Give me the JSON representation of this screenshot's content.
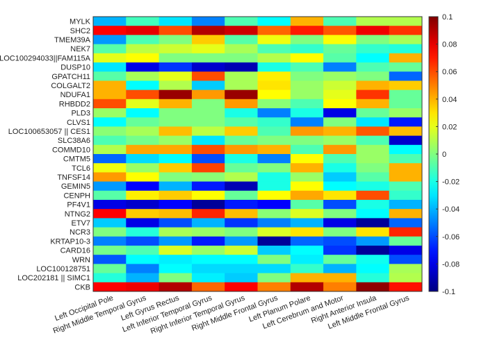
{
  "chart_data": {
    "type": "heatmap",
    "title": "",
    "rows": [
      "MYLK",
      "SHC2",
      "TMEM39A",
      "NEK7",
      "LOC100294033||FAM115A",
      "DUSP10",
      "GPATCH11",
      "COLGALT2",
      "NDUFA1",
      "RHBDD2",
      "PLD3",
      "CLVS1",
      "LOC100653057 || CES1",
      "SLC38A6",
      "COMMD10",
      "CMTM5",
      "TCL6",
      "TNFSF14",
      "GEMIN5",
      "CENPH",
      "PF4V1",
      "NTNG2",
      "ETV7",
      "NCR3",
      "KRTAP10-3",
      "CARD16",
      "WRN",
      "LOC100128751",
      "LOC202181 || SIMC1",
      "CKB"
    ],
    "columns": [
      "Left Occipital Pole",
      "Right Middle Temporal Gyrus",
      "Left Gyrus Rectus",
      "Left Inferior Temporal Gyrus",
      "Right Inferior Temporal Gyrus",
      "Right Middle Frontal Gyrus",
      "Left Planum Polare",
      "Left Cerebrum and Motor",
      "Right Anterior Insula",
      "Left Middle Frontal Gyrus"
    ],
    "values": [
      [
        -0.04,
        -0.012,
        -0.03,
        -0.05,
        -0.01,
        -0.025,
        0.04,
        -0.01,
        0.01,
        0.01
      ],
      [
        0.075,
        0.08,
        0.06,
        0.09,
        0.085,
        0.055,
        0.07,
        0.058,
        0.078,
        0.065
      ],
      [
        -0.045,
        -0.01,
        0.0,
        0.035,
        -0.008,
        0.022,
        0.0,
        0.024,
        0.0,
        0.008
      ],
      [
        -0.008,
        0.012,
        0.015,
        0.02,
        0.008,
        -0.01,
        -0.015,
        -0.005,
        -0.015,
        -0.018
      ],
      [
        0.02,
        0.025,
        0.0,
        0.0,
        0.0,
        0.01,
        0.025,
        -0.008,
        -0.025,
        0.04
      ],
      [
        -0.03,
        -0.08,
        -0.065,
        -0.085,
        -0.09,
        -0.02,
        -0.01,
        -0.05,
        -0.01,
        -0.005
      ],
      [
        -0.008,
        0.008,
        0.02,
        0.06,
        0.008,
        0.028,
        0.0,
        0.005,
        0.0,
        -0.055
      ],
      [
        0.04,
        -0.025,
        0.01,
        -0.035,
        0.008,
        0.03,
        0.005,
        0.015,
        0.04,
        0.035
      ],
      [
        0.04,
        0.06,
        0.095,
        0.045,
        0.095,
        0.025,
        0.005,
        0.02,
        0.065,
        -0.005
      ],
      [
        0.06,
        0.02,
        0.04,
        0.0,
        0.045,
        0.002,
        -0.01,
        0.025,
        0.04,
        -0.005
      ],
      [
        0.005,
        -0.025,
        0.0,
        0.0,
        -0.02,
        -0.05,
        -0.02,
        -0.08,
        -0.005,
        0.005
      ],
      [
        -0.025,
        -0.005,
        0.0,
        0.0,
        -0.008,
        -0.015,
        -0.05,
        0.0,
        -0.03,
        -0.07
      ],
      [
        0.002,
        0.008,
        0.038,
        0.012,
        0.035,
        -0.01,
        0.045,
        0.04,
        0.058,
        0.038
      ],
      [
        -0.01,
        -0.002,
        0.005,
        -0.03,
        -0.005,
        0.0,
        0.0,
        0.005,
        -0.01,
        -0.085
      ],
      [
        0.01,
        0.042,
        0.042,
        0.06,
        0.045,
        0.04,
        -0.01,
        0.045,
        0.005,
        -0.025
      ],
      [
        -0.055,
        -0.032,
        -0.025,
        -0.06,
        -0.02,
        -0.05,
        0.025,
        -0.01,
        0.005,
        -0.01
      ],
      [
        0.022,
        0.005,
        0.035,
        0.062,
        -0.005,
        0.0,
        0.04,
        -0.02,
        0.0,
        0.04
      ],
      [
        0.045,
        0.025,
        0.0,
        0.002,
        0.01,
        -0.02,
        0.005,
        -0.035,
        -0.008,
        0.04
      ],
      [
        -0.045,
        -0.075,
        -0.04,
        -0.07,
        -0.09,
        -0.02,
        0.025,
        -0.025,
        -0.02,
        -0.01
      ],
      [
        -0.008,
        0.028,
        0.035,
        0.025,
        -0.005,
        0.025,
        0.042,
        0.03,
        0.06,
        -0.015
      ],
      [
        -0.08,
        -0.085,
        -0.075,
        -0.095,
        -0.07,
        -0.075,
        -0.008,
        -0.06,
        -0.02,
        -0.04
      ],
      [
        0.075,
        0.035,
        0.038,
        0.068,
        0.038,
        0.002,
        0.018,
        0.0,
        -0.025,
        0.04
      ],
      [
        -0.035,
        -0.08,
        -0.06,
        -0.04,
        -0.065,
        -0.05,
        -0.04,
        -0.08,
        -0.095,
        -0.055
      ],
      [
        0.0,
        -0.018,
        0.008,
        0.005,
        0.0,
        0.018,
        0.03,
        0.0,
        0.03,
        0.068
      ],
      [
        -0.05,
        -0.06,
        -0.045,
        -0.07,
        -0.045,
        -0.095,
        -0.055,
        -0.06,
        -0.045,
        -0.005
      ],
      [
        -0.002,
        -0.01,
        0.018,
        0.005,
        0.015,
        -0.035,
        -0.025,
        -0.065,
        -0.095,
        -0.08
      ],
      [
        -0.058,
        -0.025,
        -0.028,
        -0.025,
        -0.025,
        0.0,
        -0.028,
        -0.005,
        -0.022,
        -0.06
      ],
      [
        -0.005,
        -0.05,
        -0.025,
        -0.032,
        -0.032,
        -0.032,
        -0.015,
        -0.04,
        -0.025,
        0.008
      ],
      [
        -0.018,
        -0.04,
        0.0,
        -0.028,
        -0.035,
        0.0,
        0.04,
        0.04,
        -0.018,
        0.01
      ],
      [
        0.075,
        0.078,
        0.09,
        0.055,
        0.075,
        0.05,
        0.09,
        0.05,
        0.097,
        0.072
      ]
    ],
    "colormap": "jet",
    "clim": [
      -0.1,
      0.1
    ],
    "colorbar_ticks": [
      "0.1",
      "0.08",
      "0.06",
      "0.04",
      "0.02",
      "0",
      "-0.02",
      "-0.04",
      "-0.06",
      "-0.08",
      "-0.1"
    ],
    "colorbar_position": "right"
  }
}
